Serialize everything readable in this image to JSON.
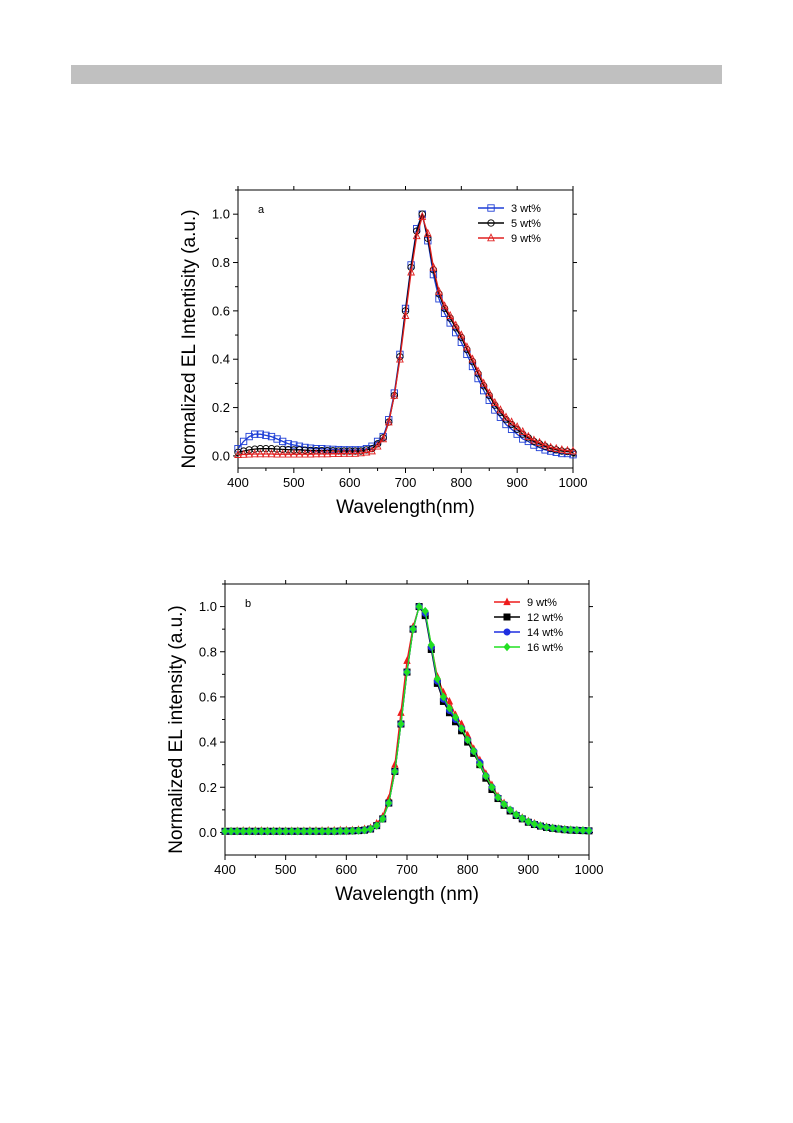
{
  "page": {
    "header_bar_color": "#c0c0c0",
    "watermark_a": "",
    "watermark_b": ""
  },
  "chart_data": [
    {
      "type": "line",
      "panel_label": "a",
      "title": "",
      "xlabel": "Wavelength(nm)",
      "ylabel": "Normalized EL Intentisity (a.u.)",
      "xlim": [
        400,
        1000
      ],
      "ylim": [
        -0.05,
        1.1
      ],
      "xticks": [
        "400",
        "500",
        "600",
        "700",
        "800",
        "900",
        "1000"
      ],
      "yticks": [
        "0.0",
        "0.2",
        "0.4",
        "0.6",
        "0.8",
        "1.0"
      ],
      "grid": false,
      "legend_position": "top-right",
      "x": [
        400,
        410,
        420,
        430,
        440,
        450,
        460,
        470,
        480,
        490,
        500,
        510,
        520,
        530,
        540,
        550,
        560,
        570,
        580,
        590,
        600,
        610,
        620,
        630,
        640,
        650,
        660,
        670,
        680,
        690,
        700,
        710,
        720,
        730,
        740,
        750,
        760,
        770,
        780,
        790,
        800,
        810,
        820,
        830,
        840,
        850,
        860,
        870,
        880,
        890,
        900,
        910,
        920,
        930,
        940,
        950,
        960,
        970,
        980,
        990,
        1000
      ],
      "series": [
        {
          "name": "3 wt%",
          "color": "#1f3fd6",
          "marker": "square-open",
          "values": [
            0.03,
            0.06,
            0.08,
            0.09,
            0.09,
            0.085,
            0.08,
            0.07,
            0.06,
            0.05,
            0.045,
            0.04,
            0.035,
            0.032,
            0.03,
            0.03,
            0.028,
            0.027,
            0.026,
            0.025,
            0.025,
            0.025,
            0.025,
            0.03,
            0.04,
            0.06,
            0.08,
            0.15,
            0.26,
            0.42,
            0.61,
            0.79,
            0.94,
            1.0,
            0.89,
            0.75,
            0.65,
            0.59,
            0.55,
            0.51,
            0.47,
            0.42,
            0.37,
            0.32,
            0.27,
            0.23,
            0.19,
            0.16,
            0.13,
            0.11,
            0.09,
            0.07,
            0.06,
            0.045,
            0.035,
            0.025,
            0.02,
            0.015,
            0.01,
            0.01,
            0.005
          ]
        },
        {
          "name": "5 wt%",
          "color": "#000000",
          "marker": "circle-open",
          "values": [
            0.015,
            0.02,
            0.025,
            0.028,
            0.03,
            0.03,
            0.03,
            0.028,
            0.027,
            0.026,
            0.025,
            0.025,
            0.024,
            0.023,
            0.022,
            0.022,
            0.022,
            0.021,
            0.02,
            0.02,
            0.02,
            0.02,
            0.02,
            0.025,
            0.03,
            0.05,
            0.075,
            0.14,
            0.25,
            0.41,
            0.6,
            0.78,
            0.93,
            1.0,
            0.9,
            0.77,
            0.67,
            0.61,
            0.57,
            0.53,
            0.49,
            0.44,
            0.39,
            0.34,
            0.29,
            0.25,
            0.21,
            0.18,
            0.15,
            0.13,
            0.11,
            0.09,
            0.075,
            0.06,
            0.05,
            0.04,
            0.03,
            0.025,
            0.02,
            0.018,
            0.015
          ]
        },
        {
          "name": "9 wt%",
          "color": "#e02020",
          "marker": "triangle-open",
          "values": [
            0.005,
            0.006,
            0.007,
            0.008,
            0.008,
            0.008,
            0.008,
            0.007,
            0.007,
            0.007,
            0.007,
            0.007,
            0.007,
            0.007,
            0.008,
            0.008,
            0.008,
            0.009,
            0.009,
            0.01,
            0.01,
            0.01,
            0.012,
            0.015,
            0.02,
            0.04,
            0.07,
            0.14,
            0.25,
            0.4,
            0.58,
            0.76,
            0.91,
            0.99,
            0.92,
            0.78,
            0.68,
            0.62,
            0.58,
            0.54,
            0.5,
            0.45,
            0.4,
            0.35,
            0.3,
            0.26,
            0.22,
            0.19,
            0.16,
            0.14,
            0.12,
            0.1,
            0.08,
            0.065,
            0.055,
            0.045,
            0.035,
            0.03,
            0.025,
            0.022,
            0.02
          ]
        }
      ]
    },
    {
      "type": "line",
      "panel_label": "b",
      "title": "",
      "xlabel": "Wavelength (nm)",
      "ylabel": "Normalized EL intensity (a.u.)",
      "xlim": [
        400,
        1000
      ],
      "ylim": [
        -0.1,
        1.1
      ],
      "xticks": [
        "400",
        "500",
        "600",
        "700",
        "800",
        "900",
        "1000"
      ],
      "yticks": [
        "0.0",
        "0.2",
        "0.4",
        "0.6",
        "0.8",
        "1.0"
      ],
      "grid": false,
      "legend_position": "top-right",
      "x": [
        400,
        410,
        420,
        430,
        440,
        450,
        460,
        470,
        480,
        490,
        500,
        510,
        520,
        530,
        540,
        550,
        560,
        570,
        580,
        590,
        600,
        610,
        620,
        630,
        640,
        650,
        660,
        670,
        680,
        690,
        700,
        710,
        720,
        730,
        740,
        750,
        760,
        770,
        780,
        790,
        800,
        810,
        820,
        830,
        840,
        850,
        860,
        870,
        880,
        890,
        900,
        910,
        920,
        930,
        940,
        950,
        960,
        970,
        980,
        990,
        1000
      ],
      "series": [
        {
          "name": "9 wt%",
          "color": "#ee1c1c",
          "marker": "triangle",
          "values": [
            0.005,
            0.006,
            0.007,
            0.008,
            0.008,
            0.008,
            0.008,
            0.007,
            0.007,
            0.007,
            0.007,
            0.007,
            0.007,
            0.007,
            0.008,
            0.008,
            0.008,
            0.009,
            0.009,
            0.01,
            0.01,
            0.01,
            0.012,
            0.015,
            0.02,
            0.04,
            0.07,
            0.15,
            0.3,
            0.53,
            0.76,
            0.91,
            1.0,
            0.97,
            0.83,
            0.69,
            0.62,
            0.58,
            0.52,
            0.48,
            0.43,
            0.37,
            0.32,
            0.26,
            0.21,
            0.16,
            0.13,
            0.1,
            0.08,
            0.065,
            0.05,
            0.04,
            0.03,
            0.025,
            0.02,
            0.017,
            0.014,
            0.012,
            0.01,
            0.009,
            0.008
          ]
        },
        {
          "name": "12 wt%",
          "color": "#000000",
          "marker": "square",
          "values": [
            0.005,
            0.005,
            0.005,
            0.005,
            0.005,
            0.005,
            0.005,
            0.005,
            0.005,
            0.005,
            0.005,
            0.005,
            0.005,
            0.005,
            0.005,
            0.005,
            0.005,
            0.005,
            0.005,
            0.006,
            0.006,
            0.007,
            0.008,
            0.01,
            0.015,
            0.03,
            0.06,
            0.13,
            0.27,
            0.48,
            0.71,
            0.9,
            1.0,
            0.96,
            0.81,
            0.66,
            0.58,
            0.53,
            0.49,
            0.45,
            0.4,
            0.35,
            0.3,
            0.24,
            0.19,
            0.15,
            0.12,
            0.095,
            0.075,
            0.06,
            0.045,
            0.035,
            0.028,
            0.022,
            0.018,
            0.015,
            0.012,
            0.01,
            0.009,
            0.008,
            0.007
          ]
        },
        {
          "name": "14 wt%",
          "color": "#1f2fe0",
          "marker": "circle",
          "values": [
            0.005,
            0.005,
            0.005,
            0.005,
            0.005,
            0.005,
            0.005,
            0.005,
            0.005,
            0.005,
            0.005,
            0.005,
            0.005,
            0.005,
            0.005,
            0.005,
            0.005,
            0.005,
            0.005,
            0.006,
            0.006,
            0.007,
            0.008,
            0.01,
            0.015,
            0.03,
            0.06,
            0.13,
            0.27,
            0.48,
            0.71,
            0.9,
            1.0,
            0.97,
            0.82,
            0.67,
            0.59,
            0.54,
            0.5,
            0.46,
            0.41,
            0.36,
            0.31,
            0.25,
            0.2,
            0.155,
            0.125,
            0.1,
            0.078,
            0.062,
            0.047,
            0.037,
            0.029,
            0.023,
            0.019,
            0.016,
            0.013,
            0.011,
            0.01,
            0.009,
            0.008
          ]
        },
        {
          "name": "16 wt%",
          "color": "#22e022",
          "marker": "diamond",
          "values": [
            0.005,
            0.005,
            0.005,
            0.005,
            0.005,
            0.005,
            0.005,
            0.005,
            0.005,
            0.005,
            0.005,
            0.005,
            0.005,
            0.005,
            0.005,
            0.005,
            0.005,
            0.005,
            0.005,
            0.006,
            0.006,
            0.007,
            0.008,
            0.01,
            0.015,
            0.03,
            0.06,
            0.13,
            0.27,
            0.48,
            0.71,
            0.9,
            1.0,
            0.98,
            0.83,
            0.68,
            0.6,
            0.55,
            0.51,
            0.46,
            0.41,
            0.36,
            0.3,
            0.25,
            0.2,
            0.155,
            0.125,
            0.1,
            0.078,
            0.062,
            0.047,
            0.037,
            0.029,
            0.023,
            0.019,
            0.016,
            0.013,
            0.011,
            0.01,
            0.009,
            0.008
          ]
        }
      ]
    }
  ]
}
